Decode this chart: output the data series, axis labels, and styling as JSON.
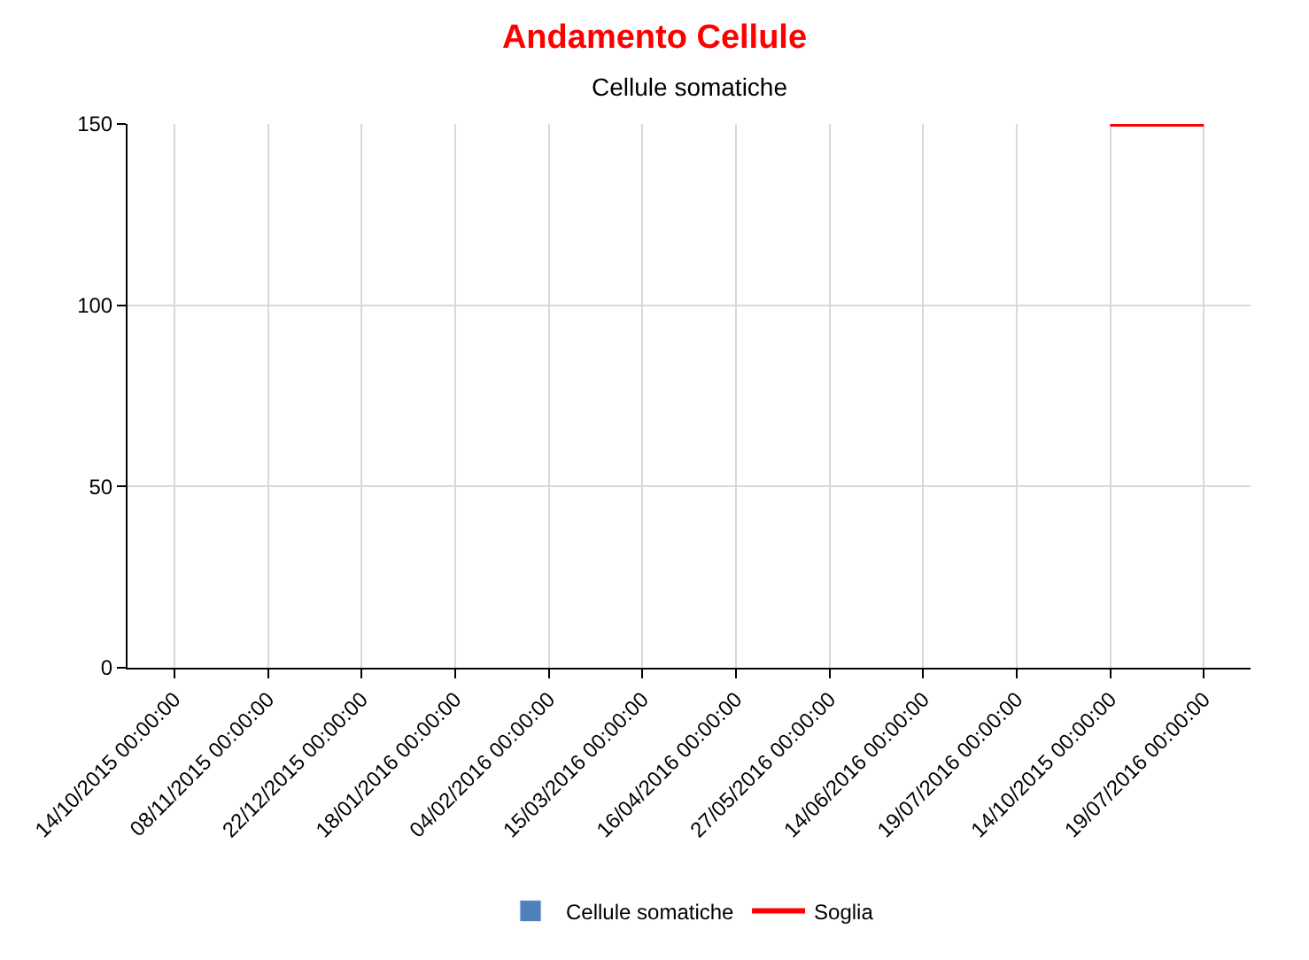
{
  "chart_data": {
    "type": "bar",
    "title": "Andamento Cellule",
    "subtitle": "Cellule somatiche",
    "categories": [
      "14/10/2015 00:00:00",
      "08/11/2015 00:00:00",
      "22/12/2015 00:00:00",
      "18/01/2016 00:00:00",
      "04/02/2016 00:00:00",
      "15/03/2016 00:00:00",
      "16/04/2016 00:00:00",
      "27/05/2016 00:00:00",
      "14/06/2016 00:00:00",
      "19/07/2016 00:00:00",
      "14/10/2015 00:00:00",
      "19/07/2016 00:00:00"
    ],
    "series": [
      {
        "name": "Cellule somatiche",
        "color": "#4f81bd",
        "values": [
          null,
          null,
          null,
          null,
          null,
          null,
          null,
          null,
          null,
          null,
          null,
          null
        ]
      },
      {
        "name": "Soglia",
        "type": "line",
        "color": "#ff0000",
        "values": [
          null,
          null,
          null,
          null,
          null,
          null,
          null,
          null,
          null,
          null,
          150,
          150
        ]
      }
    ],
    "ylim": [
      0,
      150
    ],
    "yticks": [
      0,
      50,
      100,
      150
    ],
    "grid": true,
    "legend": "bottom",
    "marker": "none",
    "line_style": "solid"
  }
}
